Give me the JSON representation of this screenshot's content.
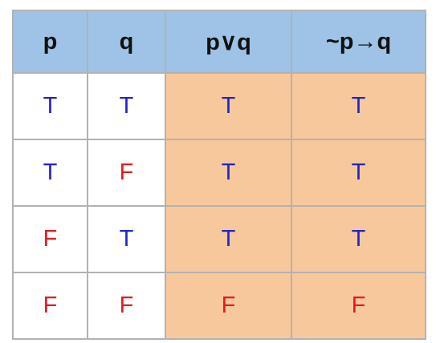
{
  "table": {
    "headers": [
      "p",
      "q",
      "p∨q",
      "~p→q"
    ],
    "rows": [
      [
        "T",
        "T",
        "T",
        "T"
      ],
      [
        "T",
        "F",
        "T",
        "T"
      ],
      [
        "F",
        "T",
        "T",
        "T"
      ],
      [
        "F",
        "F",
        "F",
        "F"
      ]
    ]
  },
  "colors": {
    "header_bg": "#9fc3e7",
    "highlight_bg": "#f8c89d",
    "true_text": "#2323c8",
    "false_text": "#e01e1e",
    "border": "#b2b2b2"
  }
}
